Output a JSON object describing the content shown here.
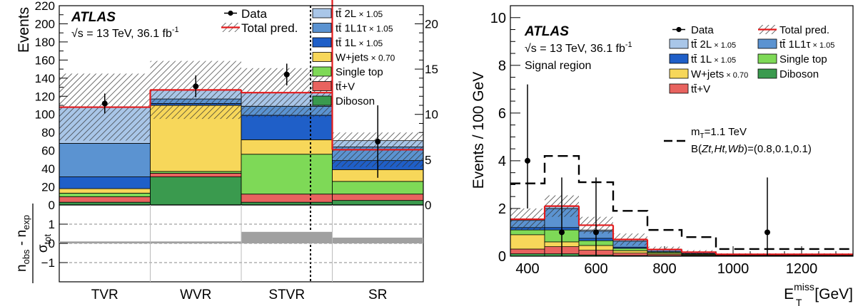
{
  "colors": {
    "ttbar_2L": "#a9c6e8",
    "ttbar_1L1tau": "#5b93d1",
    "ttbar_1L": "#1f5fc8",
    "wjets": "#f7d75a",
    "single_top": "#7ed957",
    "ttV": "#e8635f",
    "diboson": "#3a9a4e",
    "total_pred_line": "#e31a1c",
    "pull_band": "#a0a0a0"
  },
  "chart_data": [
    {
      "type": "bar",
      "subtype": "stacked",
      "atlas_label": "ATLAS",
      "energy_label": "√s = 13 TeV, 36.1 fb",
      "energy_sup": "-1",
      "ylabel": "Events",
      "categories": [
        "TVR",
        "WVR",
        "STVR",
        "SR"
      ],
      "ylim": [
        0,
        220
      ],
      "yticks": [
        "0",
        "20",
        "40",
        "60",
        "80",
        "100",
        "120",
        "140",
        "160",
        "180",
        "200",
        "220"
      ],
      "right_axis": {
        "region": "SR",
        "ylim": [
          0,
          22
        ],
        "yticks": [
          "0",
          "5",
          "10",
          "15",
          "20"
        ]
      },
      "legend": [
        {
          "key": "data",
          "label": "Data"
        },
        {
          "key": "total",
          "label": "Total pred."
        },
        {
          "key": "ttbar_2L",
          "label": "tt̄ 2L",
          "scale": "× 1.05"
        },
        {
          "key": "ttbar_1L1tau",
          "label": "tt̄ 1L1τ",
          "scale": "× 1.05"
        },
        {
          "key": "ttbar_1L",
          "label": "tt̄ 1L",
          "scale": "× 1.05"
        },
        {
          "key": "wjets",
          "label": "W+jets",
          "scale": "× 0.70"
        },
        {
          "key": "single_top",
          "label": "Single top",
          "scale": ""
        },
        {
          "key": "ttV",
          "label": "tt̄+V",
          "scale": ""
        },
        {
          "key": "diboson",
          "label": "Diboson",
          "scale": ""
        }
      ],
      "series": [
        {
          "key": "diboson",
          "values": [
            3,
            31,
            3,
            0.5
          ]
        },
        {
          "key": "ttV",
          "values": [
            6,
            4,
            9,
            0.7
          ]
        },
        {
          "key": "single_top",
          "values": [
            4,
            2,
            44,
            1.4
          ]
        },
        {
          "key": "wjets",
          "values": [
            5,
            73,
            16,
            1.3
          ]
        },
        {
          "key": "ttbar_1L",
          "values": [
            13,
            2,
            27,
            1.0
          ]
        },
        {
          "key": "ttbar_1L1tau",
          "values": [
            37,
            5,
            10,
            1.5
          ]
        },
        {
          "key": "ttbar_2L",
          "values": [
            40,
            10,
            15,
            0.7
          ]
        }
      ],
      "total_pred": [
        108,
        127,
        124,
        6.1
      ],
      "total_unc": [
        37,
        32,
        27,
        1.9
      ],
      "data": [
        {
          "value": 112,
          "err": 11
        },
        {
          "value": 131,
          "err": 12
        },
        {
          "value": 144,
          "err": 12
        },
        {
          "value": 7,
          "err": 4.0
        }
      ],
      "pull_panel": {
        "ylabel_top": "n",
        "ylabel_top_sub1": "obs",
        "ylabel_mid": " - n",
        "ylabel_top_sub2": "exp",
        "ylabel_bottom": "σ",
        "ylabel_bottom_sub": "tot",
        "ylim": [
          -2,
          2
        ],
        "yticks": [
          "−1",
          "0",
          "1"
        ],
        "values": [
          0.1,
          0.1,
          0.6,
          0.3
        ]
      }
    },
    {
      "type": "bar",
      "subtype": "stacked-histogram",
      "atlas_label": "ATLAS",
      "energy_label": "√s = 13 TeV, 36.1 fb",
      "energy_sup": "-1",
      "region_label": "Signal region",
      "xlabel": "E",
      "xlabel_sup": "miss",
      "xlabel_sub": "T",
      "xlabel_unit": " [GeV]",
      "ylabel": "Events / 100 GeV",
      "xlim": [
        350,
        1350
      ],
      "ylim": [
        0,
        10.5
      ],
      "xticks": [
        "400",
        "600",
        "800",
        "1000",
        "1200"
      ],
      "yticks": [
        "0",
        "2",
        "4",
        "6",
        "8",
        "10"
      ],
      "bin_edges": [
        350,
        450,
        550,
        650,
        750,
        850,
        950,
        1350
      ],
      "legend": [
        {
          "key": "data",
          "label": "Data"
        },
        {
          "key": "total",
          "label": "Total pred."
        },
        {
          "key": "ttbar_2L",
          "label": "tt̄ 2L",
          "scale": "× 1.05"
        },
        {
          "key": "ttbar_1L1tau",
          "label": "tt̄ 1L1τ",
          "scale": "× 1.05"
        },
        {
          "key": "ttbar_1L",
          "label": "tt̄ 1L",
          "scale": "× 1.05"
        },
        {
          "key": "single_top",
          "label": "Single top",
          "scale": ""
        },
        {
          "key": "wjets",
          "label": "W+jets",
          "scale": "× 0.70"
        },
        {
          "key": "diboson",
          "label": "Diboson",
          "scale": ""
        },
        {
          "key": "ttV",
          "label": "tt̄+V",
          "scale": ""
        }
      ],
      "series": [
        {
          "key": "diboson",
          "values": [
            0.1,
            0.1,
            0.05,
            0.03,
            0.02,
            0.01,
            0.0
          ]
        },
        {
          "key": "ttV",
          "values": [
            0.2,
            0.3,
            0.2,
            0.1,
            0.05,
            0.02,
            0.01
          ]
        },
        {
          "key": "wjets",
          "values": [
            0.6,
            0.2,
            0.2,
            0.1,
            0.05,
            0.03,
            0.02
          ]
        },
        {
          "key": "single_top",
          "values": [
            0.2,
            0.5,
            0.2,
            0.1,
            0.05,
            0.03,
            0.01
          ]
        },
        {
          "key": "ttbar_1L",
          "values": [
            0.1,
            0.1,
            0.1,
            0.05,
            0.02,
            0.02,
            0.01
          ]
        },
        {
          "key": "ttbar_1L1tau",
          "values": [
            0.3,
            0.8,
            0.3,
            0.25,
            0.08,
            0.04,
            0.02
          ]
        },
        {
          "key": "ttbar_2L",
          "values": [
            0.05,
            0.1,
            0.05,
            0.05,
            0.03,
            0.02,
            0.01
          ]
        }
      ],
      "total_pred": [
        1.55,
        2.1,
        1.3,
        0.7,
        0.28,
        0.17,
        0.08
      ],
      "total_unc": [
        0.45,
        0.45,
        0.35,
        0.25,
        0.12,
        0.08,
        0.04
      ],
      "data": [
        {
          "x": 400,
          "value": 4,
          "err_up": 3.2,
          "err_down": 2.0
        },
        {
          "x": 500,
          "value": 1,
          "err_up": 2.3,
          "err_down": 1.0
        },
        {
          "x": 600,
          "value": 1,
          "err_up": 2.3,
          "err_down": 1.0
        },
        {
          "x": 1100,
          "value": 1,
          "err_up": 2.3,
          "err_down": 1.0
        }
      ],
      "signal": {
        "label1": "m",
        "label1_sub": "T",
        "label1_rest": "=1.1 TeV",
        "label2": "B(",
        "label2_italic": "Zt,Ht,Wb",
        "label2_rest": ")=(0.8,0.1,0.1)",
        "values": [
          3.05,
          4.2,
          3.1,
          1.9,
          1.1,
          0.8,
          0.3
        ]
      }
    }
  ]
}
